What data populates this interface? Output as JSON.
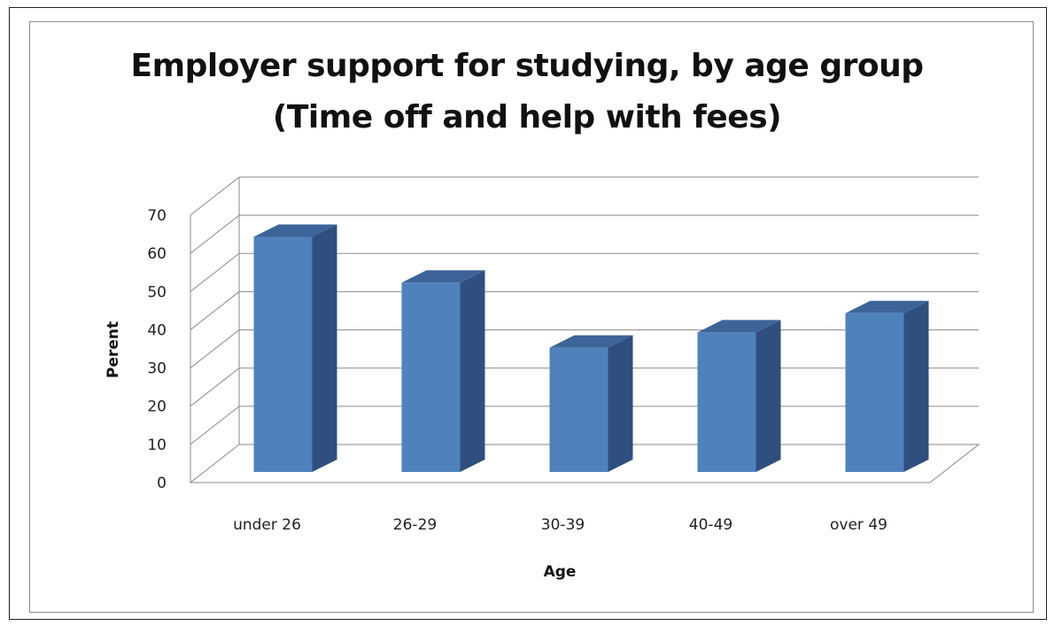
{
  "chart_data": {
    "type": "bar",
    "title": "Employer support for studying, by age group",
    "subtitle": "(Time off and help with fees)",
    "xlabel": "Age",
    "ylabel": "Perent",
    "categories": [
      "under 26",
      "26-29",
      "30-39",
      "40-49",
      "over 49"
    ],
    "values": [
      62,
      50,
      33,
      37,
      42
    ],
    "ylim": [
      0,
      70
    ],
    "yticks": [
      "0",
      "10",
      "20",
      "30",
      "40",
      "50",
      "60",
      "70"
    ],
    "grid": true,
    "style": "3d-column",
    "colors": {
      "front": "#4f81bd",
      "side": "#2f4f7f",
      "top": "#3d6499"
    }
  }
}
